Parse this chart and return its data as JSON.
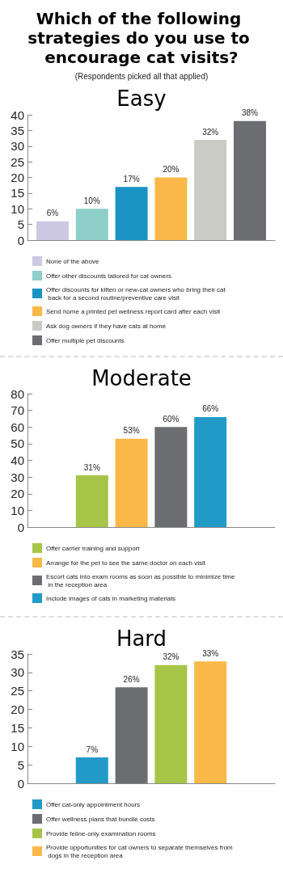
{
  "chart_data": [
    {
      "type": "bar",
      "title": "Easy",
      "annotations": [
        "Which of the following strategies do you use to encourage cat visits?",
        "(Respondents picked all that applied)"
      ],
      "categories": [
        null
      ],
      "ylim": [
        0,
        40
      ],
      "yticks": [
        0,
        5,
        10,
        15,
        20,
        25,
        30,
        35,
        40
      ],
      "grid": false,
      "legend": "bottom",
      "tick_labels": "y",
      "series": [
        {
          "name": "None of the above",
          "color": "#cdc8e3",
          "values": [
            6
          ],
          "value_labels": [
            "6%"
          ]
        },
        {
          "name": "Offer other discounts tailored for cat owners",
          "color": "#8ecfca",
          "values": [
            10
          ],
          "value_labels": [
            "10%"
          ]
        },
        {
          "name": "Offer discounts for kitten or new-cat owners who bring their cat back for a second routine/preventive care visit",
          "color": "#1b93c3",
          "values": [
            17
          ],
          "value_labels": [
            "17%"
          ]
        },
        {
          "name": "Send home a printed pet wellness report card after each visit",
          "color": "#f9b848",
          "values": [
            20
          ],
          "value_labels": [
            "20%"
          ]
        },
        {
          "name": "Ask dog owners if they have cats at home",
          "color": "#cbcbc5",
          "values": [
            32
          ],
          "value_labels": [
            "32%"
          ]
        },
        {
          "name": "Offer multiple pet discounts",
          "color": "#6c6d70",
          "values": [
            38
          ],
          "value_labels": [
            "38%"
          ]
        }
      ]
    },
    {
      "type": "bar",
      "title": "Moderate",
      "categories": [
        null
      ],
      "ylim": [
        0,
        80
      ],
      "yticks": [
        0,
        10,
        20,
        30,
        40,
        50,
        60,
        70,
        80
      ],
      "grid": false,
      "legend": "bottom",
      "tick_labels": "y",
      "series": [
        {
          "name": "Offer carrier training and support",
          "color": "#a6c548",
          "values": [
            31
          ],
          "value_labels": [
            "31%"
          ]
        },
        {
          "name": "Arrange for the pet to see the same doctor on each visit",
          "color": "#f9b848",
          "values": [
            53
          ],
          "value_labels": [
            "53%"
          ]
        },
        {
          "name": "Escort cats into exam rooms as soon as possible to minimize time in the reception area",
          "color": "#6c6d70",
          "values": [
            60
          ],
          "value_labels": [
            "60%"
          ]
        },
        {
          "name": "Include images of cats in marketing materials",
          "color": "#219ac8",
          "values": [
            66
          ],
          "value_labels": [
            "66%"
          ]
        }
      ]
    },
    {
      "type": "bar",
      "title": "Hard",
      "categories": [
        null
      ],
      "ylim": [
        0,
        35
      ],
      "yticks": [
        0,
        5,
        10,
        15,
        20,
        25,
        30,
        35
      ],
      "grid": false,
      "legend": "bottom",
      "tick_labels": "y",
      "series": [
        {
          "name": "Offer cat-only appointment hours",
          "color": "#219ac8",
          "values": [
            7
          ],
          "value_labels": [
            "7%"
          ]
        },
        {
          "name": "Offer wellness plans that bundle costs",
          "color": "#6c6d70",
          "values": [
            26
          ],
          "value_labels": [
            "26%"
          ]
        },
        {
          "name": "Provide feline-only examination rooms",
          "color": "#a6c548",
          "values": [
            32
          ],
          "value_labels": [
            "32%"
          ]
        },
        {
          "name": "Provide opportunities for cat owners to separate themselves from dogs in the reception area",
          "color": "#f9b848",
          "values": [
            33
          ],
          "value_labels": [
            "33%"
          ]
        }
      ]
    }
  ]
}
